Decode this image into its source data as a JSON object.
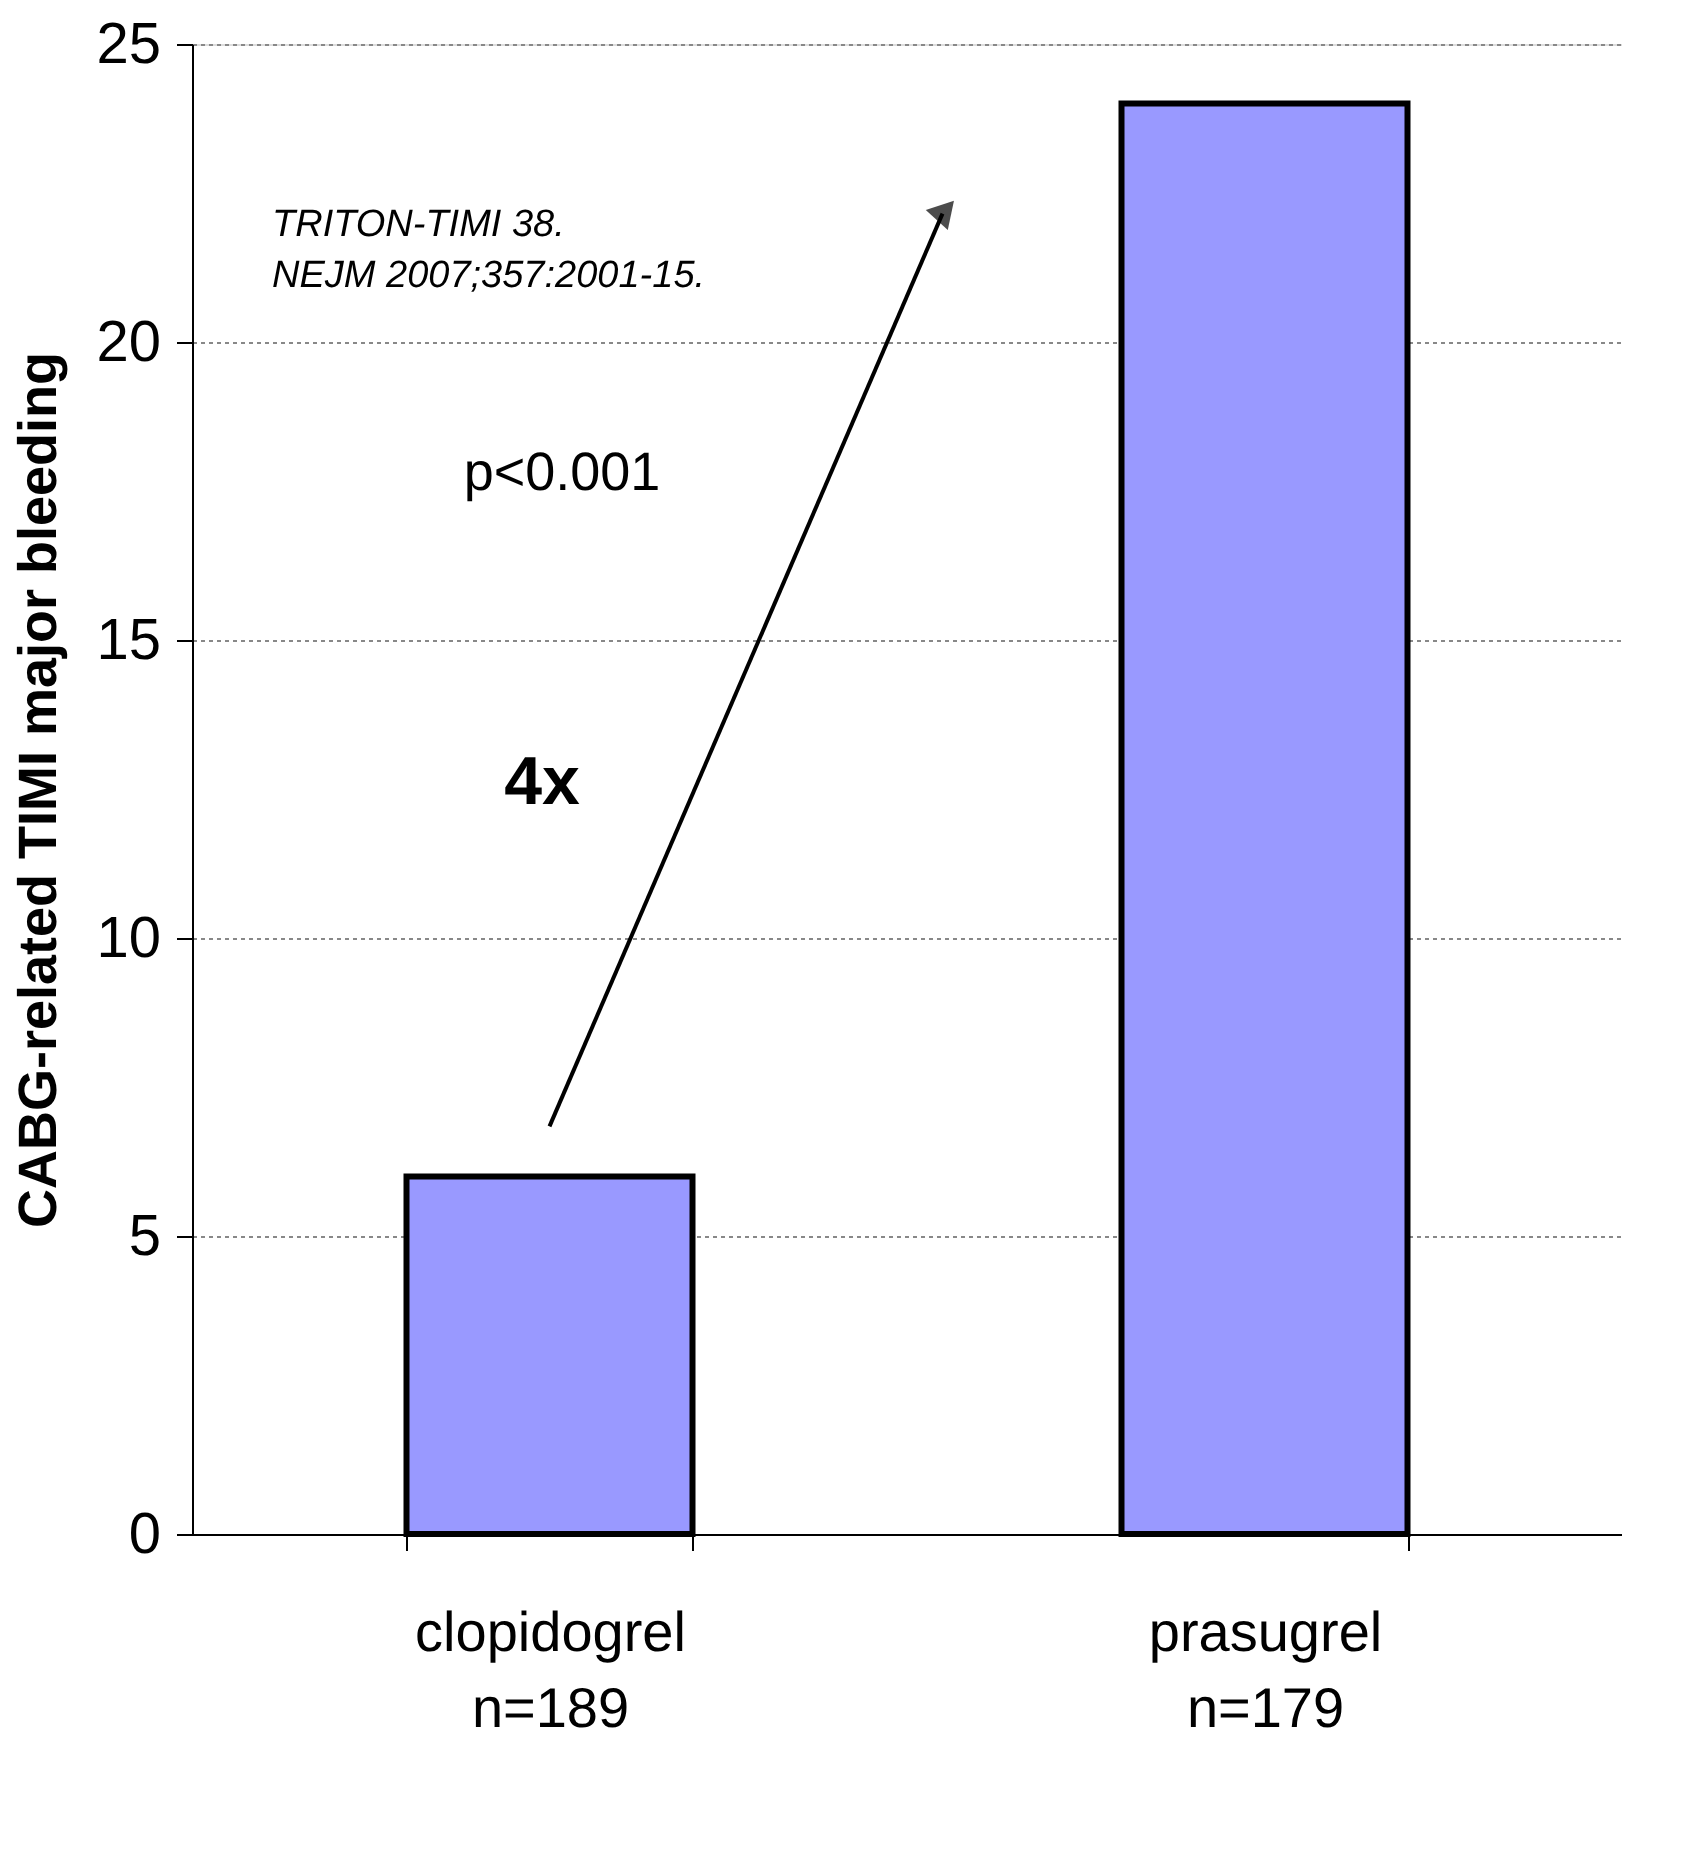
{
  "chart_data": {
    "type": "bar",
    "ylabel": "CABG-related TIMI major bleeding",
    "categories": [
      "clopidogrel\nn=189",
      "prasugrel\nn=179"
    ],
    "values": [
      6.0,
      24.0
    ],
    "color": "#9999ff",
    "ylim": [
      0,
      25
    ],
    "yticks": [
      0,
      5,
      10,
      15,
      20,
      25
    ],
    "grid": "y",
    "annotations": [
      "TRITON-TIMI 38.\nNEJM 2007;357:2001-15.",
      "p<0.001",
      "4x"
    ]
  }
}
